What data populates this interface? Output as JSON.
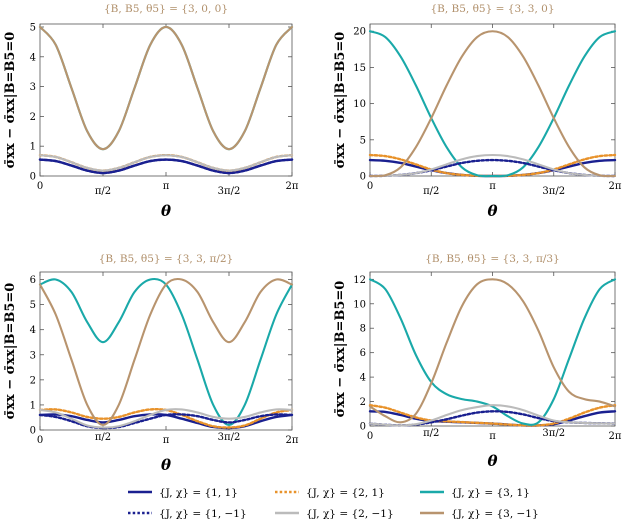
{
  "shared": {
    "xlabel": "θ",
    "ylabel": "σ̄xx − σ̄xx|B=B5=0",
    "x_ticks": [
      "0",
      "π/2",
      "π",
      "3π/2",
      "2π"
    ],
    "x_tick_values": [
      0,
      1.5708,
      3.1416,
      4.7124,
      6.2832
    ],
    "colors": {
      "navy": "#1a2090",
      "orange": "#e8922a",
      "teal": "#1aa9a9",
      "grey": "#bbbbbb",
      "tan": "#b8946e"
    }
  },
  "legend": [
    {
      "label": "{J, χ} = {1, 1}",
      "color": "#1a2090",
      "dash": "solid"
    },
    {
      "label": "{J, χ} = {2, 1}",
      "color": "#e8922a",
      "dash": "dotted"
    },
    {
      "label": "{J, χ} = {3, 1}",
      "color": "#1aa9a9",
      "dash": "solid"
    },
    {
      "label": "{J, χ} = {1, −1}",
      "color": "#1a2090",
      "dash": "dotted"
    },
    {
      "label": "{J, χ} = {2, −1}",
      "color": "#bbbbbb",
      "dash": "solid"
    },
    {
      "label": "{J, χ} = {3, −1}",
      "color": "#b8946e",
      "dash": "solid"
    }
  ],
  "chart_data": [
    {
      "type": "line",
      "title": "{B, B5, θ5} = {3, 0, 0}",
      "xlabel": "θ",
      "ylabel": "σ̄xx − σ̄xx|B=B5=0",
      "xlim": [
        0,
        6.2832
      ],
      "ylim": [
        0,
        5.1
      ],
      "y_ticks": [
        0,
        1,
        2,
        3,
        4,
        5
      ],
      "x": [
        0,
        0.3927,
        0.7854,
        1.1781,
        1.5708,
        1.9635,
        2.3562,
        2.7489,
        3.1416,
        3.5343,
        3.927,
        4.3197,
        4.7124,
        5.1051,
        5.4978,
        5.8905,
        6.2832
      ],
      "series": [
        {
          "name": "{J, χ} = {1, 1}",
          "values": [
            0.55,
            0.5,
            0.35,
            0.18,
            0.1,
            0.18,
            0.35,
            0.5,
            0.55,
            0.5,
            0.35,
            0.18,
            0.1,
            0.18,
            0.35,
            0.5,
            0.55
          ]
        },
        {
          "name": "{J, χ} = {2, 1}",
          "values": [
            0.7,
            0.64,
            0.46,
            0.27,
            0.18,
            0.27,
            0.46,
            0.64,
            0.7,
            0.64,
            0.46,
            0.27,
            0.18,
            0.27,
            0.46,
            0.64,
            0.7
          ]
        },
        {
          "name": "{J, χ} = {3, 1}",
          "values": [
            5.0,
            4.4,
            2.95,
            1.5,
            0.9,
            1.5,
            2.95,
            4.4,
            5.0,
            4.4,
            2.95,
            1.5,
            0.9,
            1.5,
            2.95,
            4.4,
            5.0
          ]
        },
        {
          "name": "{J, χ} = {1, −1}",
          "values": [
            0.55,
            0.5,
            0.35,
            0.18,
            0.1,
            0.18,
            0.35,
            0.5,
            0.55,
            0.5,
            0.35,
            0.18,
            0.1,
            0.18,
            0.35,
            0.5,
            0.55
          ]
        },
        {
          "name": "{J, χ} = {2, −1}",
          "values": [
            0.7,
            0.64,
            0.46,
            0.27,
            0.18,
            0.27,
            0.46,
            0.64,
            0.7,
            0.64,
            0.46,
            0.27,
            0.18,
            0.27,
            0.46,
            0.64,
            0.7
          ]
        },
        {
          "name": "{J, χ} = {3, −1}",
          "values": [
            5.0,
            4.4,
            2.95,
            1.5,
            0.9,
            1.5,
            2.95,
            4.4,
            5.0,
            4.4,
            2.95,
            1.5,
            0.9,
            1.5,
            2.95,
            4.4,
            5.0
          ]
        }
      ]
    },
    {
      "type": "line",
      "title": "{B, B5, θ5} = {3, 3, 0}",
      "xlabel": "θ",
      "ylabel": "σ̄xx − σ̄xx|B=B5=0",
      "xlim": [
        0,
        6.2832
      ],
      "ylim": [
        0,
        21
      ],
      "y_ticks": [
        0,
        5,
        10,
        15,
        20
      ],
      "x": [
        0,
        0.3927,
        0.7854,
        1.1781,
        1.5708,
        1.9635,
        2.3562,
        2.7489,
        3.1416,
        3.5343,
        3.927,
        4.3197,
        4.7124,
        5.1051,
        5.4978,
        5.8905,
        6.2832
      ],
      "series": [
        {
          "name": "{J, χ} = {1, 1}",
          "values": [
            2.2,
            2.1,
            1.8,
            1.3,
            0.8,
            0.4,
            0.15,
            0.03,
            0,
            0.03,
            0.15,
            0.4,
            0.8,
            1.3,
            1.8,
            2.1,
            2.2
          ]
        },
        {
          "name": "{J, χ} = {2, 1}",
          "values": [
            2.9,
            2.75,
            2.3,
            1.6,
            0.9,
            0.4,
            0.15,
            0.03,
            0,
            0.03,
            0.15,
            0.4,
            0.9,
            1.6,
            2.3,
            2.75,
            2.9
          ]
        },
        {
          "name": "{J, χ} = {3, 1}",
          "values": [
            20,
            19.2,
            16.5,
            12.5,
            8,
            4,
            1.2,
            0.1,
            0,
            0.1,
            1.2,
            4,
            8,
            12.5,
            16.5,
            19.2,
            20
          ]
        },
        {
          "name": "{J, χ} = {1, −1}",
          "values": [
            0,
            0.03,
            0.15,
            0.4,
            0.8,
            1.3,
            1.8,
            2.1,
            2.2,
            2.1,
            1.8,
            1.3,
            0.8,
            0.4,
            0.15,
            0.03,
            0
          ]
        },
        {
          "name": "{J, χ} = {2, −1}",
          "values": [
            0,
            0.03,
            0.15,
            0.4,
            0.9,
            1.6,
            2.3,
            2.75,
            2.9,
            2.75,
            2.3,
            1.6,
            0.9,
            0.4,
            0.15,
            0.03,
            0
          ]
        },
        {
          "name": "{J, χ} = {3, −1}",
          "values": [
            0,
            0.1,
            1.2,
            4,
            8,
            12.5,
            16.5,
            19.2,
            20,
            19.2,
            16.5,
            12.5,
            8,
            4,
            1.2,
            0.1,
            0
          ]
        }
      ]
    },
    {
      "type": "line",
      "title": "{B, B5, θ5} = {3, 3, π/2}",
      "xlabel": "θ",
      "ylabel": "σ̄xx − σ̄xx|B=B5=0",
      "xlim": [
        0,
        6.2832
      ],
      "ylim": [
        0,
        6.3
      ],
      "y_ticks": [
        0,
        1,
        2,
        3,
        4,
        5,
        6
      ],
      "x": [
        0,
        0.3927,
        0.7854,
        1.1781,
        1.5708,
        1.9635,
        2.3562,
        2.7489,
        3.1416,
        3.5343,
        3.927,
        4.3197,
        4.7124,
        5.1051,
        5.4978,
        5.8905,
        6.2832
      ],
      "series": [
        {
          "name": "{J, χ} = {1, 1}",
          "values": [
            0.6,
            0.62,
            0.55,
            0.4,
            0.3,
            0.4,
            0.55,
            0.62,
            0.6,
            0.45,
            0.28,
            0.12,
            0.08,
            0.15,
            0.35,
            0.52,
            0.6
          ]
        },
        {
          "name": "{J, χ} = {2, 1}",
          "values": [
            0.8,
            0.82,
            0.7,
            0.52,
            0.45,
            0.52,
            0.7,
            0.82,
            0.8,
            0.6,
            0.35,
            0.15,
            0.1,
            0.18,
            0.45,
            0.7,
            0.8
          ]
        },
        {
          "name": "{J, χ} = {3, 1}",
          "values": [
            5.8,
            6.0,
            5.5,
            4.3,
            3.5,
            4.3,
            5.5,
            6.0,
            5.8,
            4.6,
            2.8,
            1.0,
            0.2,
            1.0,
            2.8,
            4.6,
            5.8
          ]
        },
        {
          "name": "{J, χ} = {1, −1}",
          "values": [
            0.6,
            0.52,
            0.35,
            0.15,
            0.08,
            0.12,
            0.28,
            0.45,
            0.6,
            0.62,
            0.55,
            0.4,
            0.3,
            0.4,
            0.55,
            0.62,
            0.6
          ]
        },
        {
          "name": "{J, χ} = {2, −1}",
          "values": [
            0.8,
            0.7,
            0.45,
            0.18,
            0.1,
            0.15,
            0.35,
            0.6,
            0.8,
            0.82,
            0.7,
            0.52,
            0.45,
            0.52,
            0.7,
            0.82,
            0.8
          ]
        },
        {
          "name": "{J, χ} = {3, −1}",
          "values": [
            5.8,
            4.6,
            2.8,
            1.0,
            0.2,
            1.0,
            2.8,
            4.6,
            5.8,
            6.0,
            5.5,
            4.3,
            3.5,
            4.3,
            5.5,
            6.0,
            5.8
          ]
        }
      ]
    },
    {
      "type": "line",
      "title": "{B, B5, θ5} = {3, 3, π/3}",
      "xlabel": "θ",
      "ylabel": "σ̄xx − σ̄xx|B=B5=0",
      "xlim": [
        0,
        6.2832
      ],
      "ylim": [
        0,
        12.6
      ],
      "y_ticks": [
        0,
        2,
        4,
        6,
        8,
        10,
        12
      ],
      "x": [
        0,
        0.3927,
        0.7854,
        1.1781,
        1.5708,
        1.9635,
        2.3562,
        2.7489,
        3.1416,
        3.5343,
        3.927,
        4.3197,
        4.7124,
        5.1051,
        5.4978,
        5.8905,
        6.2832
      ],
      "series": [
        {
          "name": "{J, χ} = {1, 1}",
          "values": [
            1.2,
            1.15,
            0.9,
            0.6,
            0.4,
            0.35,
            0.3,
            0.25,
            0.2,
            0.12,
            0.05,
            0.05,
            0.15,
            0.45,
            0.8,
            1.1,
            1.2
          ]
        },
        {
          "name": "{J, χ} = {2, 1}",
          "values": [
            1.7,
            1.5,
            1.1,
            0.7,
            0.45,
            0.38,
            0.32,
            0.26,
            0.2,
            0.12,
            0.05,
            0.05,
            0.2,
            0.6,
            1.1,
            1.5,
            1.7
          ]
        },
        {
          "name": "{J, χ} = {3, 1}",
          "values": [
            12,
            11.2,
            8.8,
            5.8,
            3.6,
            2.6,
            2.2,
            2.0,
            1.6,
            0.8,
            0.2,
            0.3,
            2.2,
            5.5,
            8.8,
            11.2,
            12
          ]
        },
        {
          "name": "{J, χ} = {1, −1}",
          "values": [
            0.2,
            0.1,
            0.05,
            0.12,
            0.3,
            0.55,
            0.85,
            1.1,
            1.2,
            1.15,
            0.95,
            0.65,
            0.4,
            0.3,
            0.25,
            0.22,
            0.2
          ]
        },
        {
          "name": "{J, χ} = {2, −1}",
          "values": [
            0.2,
            0.1,
            0.05,
            0.15,
            0.45,
            0.9,
            1.3,
            1.55,
            1.7,
            1.6,
            1.3,
            0.85,
            0.45,
            0.3,
            0.25,
            0.22,
            0.2
          ]
        },
        {
          "name": "{J, χ} = {3, −1}",
          "values": [
            1.6,
            0.8,
            0.3,
            1.0,
            3.5,
            6.8,
            9.8,
            11.6,
            12,
            11.6,
            10.2,
            7.8,
            4.8,
            2.8,
            2.2,
            2.0,
            1.6
          ]
        }
      ]
    }
  ]
}
